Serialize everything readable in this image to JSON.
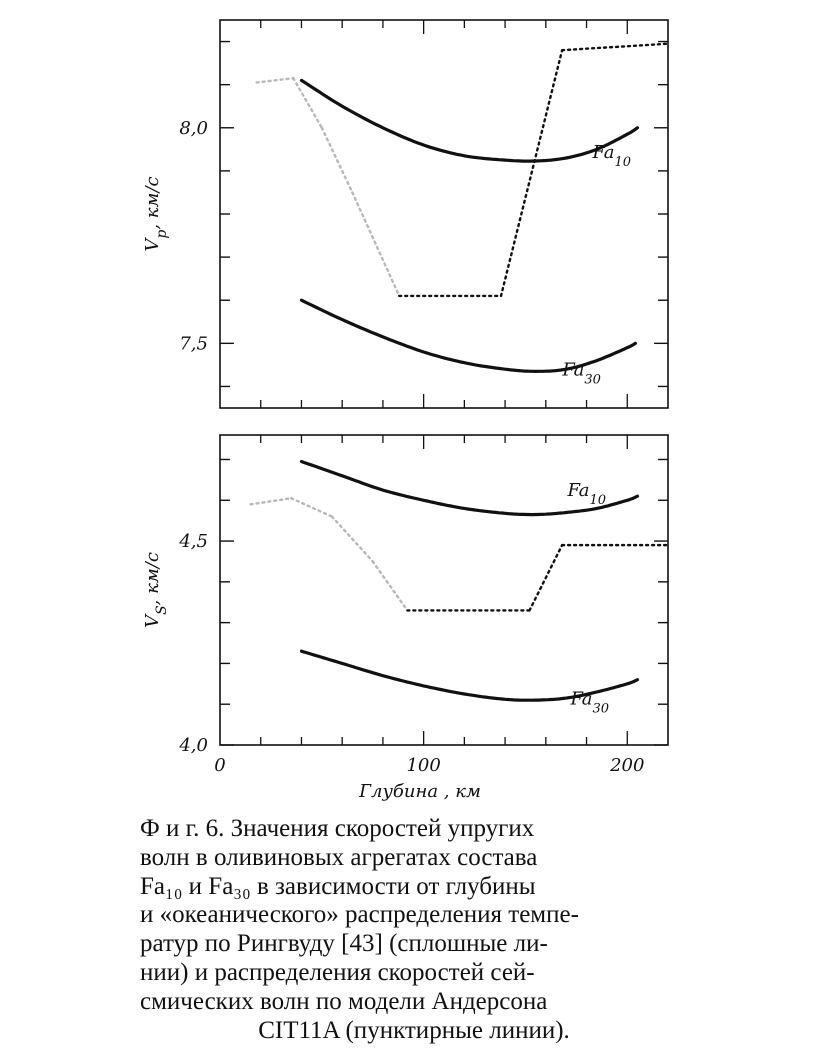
{
  "chart_data": [
    {
      "type": "line",
      "ylabel_main": "V",
      "ylabel_sub": "p",
      "ylabel_rest": ", км/с",
      "xlim": [
        0,
        220
      ],
      "ylim": [
        7.35,
        8.25
      ],
      "yticks": [
        {
          "value": 7.5,
          "label": "7,5"
        },
        {
          "value": 8.0,
          "label": "8,0"
        }
      ],
      "series": [
        {
          "label_main": "Fa",
          "label_sub": "10",
          "style": "solid",
          "x": [
            40,
            60,
            80,
            100,
            120,
            140,
            155,
            170,
            185,
            200,
            205
          ],
          "y": [
            8.11,
            8.05,
            8.0,
            7.96,
            7.935,
            7.925,
            7.923,
            7.93,
            7.95,
            7.985,
            8.0
          ]
        },
        {
          "label_main": "Fa",
          "label_sub": "30",
          "style": "solid",
          "x": [
            40,
            60,
            80,
            100,
            120,
            140,
            155,
            170,
            185,
            200,
            204
          ],
          "y": [
            7.6,
            7.555,
            7.515,
            7.48,
            7.455,
            7.44,
            7.435,
            7.44,
            7.46,
            7.49,
            7.5
          ]
        },
        {
          "style": "dotted",
          "x": [
            18,
            36,
            50,
            65,
            88,
            138,
            168,
            220
          ],
          "y": [
            8.105,
            8.115,
            8.0,
            7.85,
            7.61,
            7.61,
            8.18,
            8.195
          ]
        }
      ]
    },
    {
      "type": "line",
      "ylabel_main": "V",
      "ylabel_sub": "S",
      "ylabel_rest": ", км/с",
      "xlabel": "Глубина , км",
      "xlim": [
        0,
        220
      ],
      "ylim": [
        4.0,
        4.76
      ],
      "xticks": [
        {
          "value": 0,
          "label": "0"
        },
        {
          "value": 100,
          "label": "100"
        },
        {
          "value": 200,
          "label": "200"
        }
      ],
      "yticks": [
        {
          "value": 4.0,
          "label": "4,0"
        },
        {
          "value": 4.5,
          "label": "4,5"
        }
      ],
      "series": [
        {
          "label_main": "Fa",
          "label_sub": "10",
          "style": "solid",
          "x": [
            40,
            60,
            80,
            100,
            120,
            140,
            155,
            170,
            185,
            200,
            205
          ],
          "y": [
            4.695,
            4.66,
            4.625,
            4.6,
            4.58,
            4.568,
            4.565,
            4.57,
            4.58,
            4.6,
            4.61
          ]
        },
        {
          "label_main": "Fa",
          "label_sub": "30",
          "style": "solid",
          "x": [
            40,
            60,
            80,
            100,
            120,
            140,
            155,
            170,
            185,
            200,
            205
          ],
          "y": [
            4.23,
            4.2,
            4.17,
            4.145,
            4.125,
            4.112,
            4.11,
            4.115,
            4.13,
            4.15,
            4.16
          ]
        },
        {
          "style": "dotted",
          "x": [
            15,
            35,
            55,
            75,
            92,
            152,
            168,
            220
          ],
          "y": [
            4.59,
            4.605,
            4.56,
            4.45,
            4.33,
            4.33,
            4.49,
            4.49
          ]
        }
      ]
    }
  ],
  "caption": {
    "lines": [
      "Ф и г. 6. Значения скоростей упругих",
      "волн в оливиновых агрегатах состава",
      "Fa₁₀ и Fa₃₀ в зависимости от глубины",
      "и «океанического» распределения темпе-",
      "ратур по Рингвуду [43] (сплошные ли-",
      "нии) и распределения скоростей сей-",
      "смических волн по модели Андерсона"
    ],
    "last_line": "CIT11A (пунктирные линии)."
  }
}
